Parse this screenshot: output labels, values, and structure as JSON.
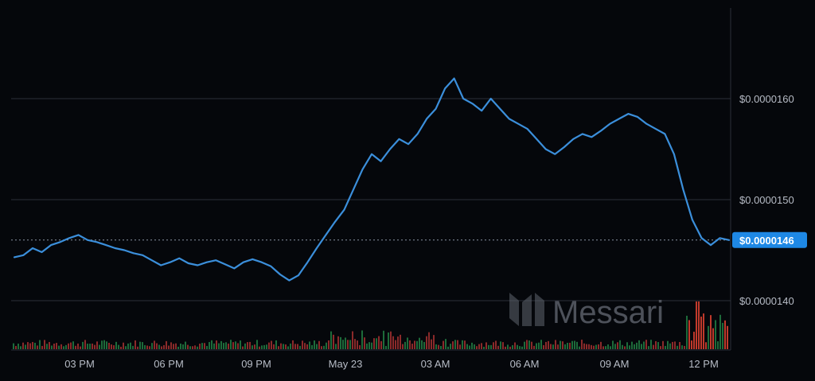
{
  "chart_data": {
    "type": "line",
    "title": "",
    "xlabel": "",
    "ylabel": "",
    "ylim": [
      1.3e-05,
      1.72e-05
    ],
    "grid": true,
    "colors": {
      "line": "#3b8fdb",
      "grid": "#2b2f38",
      "badge": "#1e88e5",
      "volume_up": "#1d6b3a",
      "volume_down": "#8b2a2a",
      "volume_spike": "#c0392b"
    },
    "x_ticks": [
      "03 PM",
      "06 PM",
      "09 PM",
      "May 23",
      "03 AM",
      "06 AM",
      "09 AM",
      "12 PM"
    ],
    "y_ticks": [
      "$0.0000140",
      "$0.0000150",
      "$0.0000160"
    ],
    "y_tick_values": [
      1.4e-05,
      1.5e-05,
      1.6e-05
    ],
    "current_price": 1.46e-05,
    "current_price_label": "$0.0000146",
    "price_points": [
      [
        0,
        1.443e-05
      ],
      [
        0.3,
        1.445e-05
      ],
      [
        0.6,
        1.452e-05
      ],
      [
        0.9,
        1.448e-05
      ],
      [
        1.2,
        1.455e-05
      ],
      [
        1.5,
        1.458e-05
      ],
      [
        1.8,
        1.462e-05
      ],
      [
        2.1,
        1.465e-05
      ],
      [
        2.4,
        1.46e-05
      ],
      [
        2.7,
        1.458e-05
      ],
      [
        3.0,
        1.455e-05
      ],
      [
        3.3,
        1.452e-05
      ],
      [
        3.6,
        1.45e-05
      ],
      [
        3.9,
        1.447e-05
      ],
      [
        4.2,
        1.445e-05
      ],
      [
        4.5,
        1.44e-05
      ],
      [
        4.8,
        1.435e-05
      ],
      [
        5.1,
        1.438e-05
      ],
      [
        5.4,
        1.442e-05
      ],
      [
        5.7,
        1.437e-05
      ],
      [
        6.0,
        1.435e-05
      ],
      [
        6.3,
        1.438e-05
      ],
      [
        6.6,
        1.44e-05
      ],
      [
        6.9,
        1.436e-05
      ],
      [
        7.2,
        1.432e-05
      ],
      [
        7.5,
        1.438e-05
      ],
      [
        7.8,
        1.441e-05
      ],
      [
        8.1,
        1.438e-05
      ],
      [
        8.4,
        1.434e-05
      ],
      [
        8.7,
        1.426e-05
      ],
      [
        9.0,
        1.42e-05
      ],
      [
        9.3,
        1.425e-05
      ],
      [
        9.6,
        1.438e-05
      ],
      [
        9.9,
        1.452e-05
      ],
      [
        10.2,
        1.465e-05
      ],
      [
        10.5,
        1.478e-05
      ],
      [
        10.8,
        1.49e-05
      ],
      [
        11.1,
        1.51e-05
      ],
      [
        11.4,
        1.53e-05
      ],
      [
        11.7,
        1.545e-05
      ],
      [
        12.0,
        1.538e-05
      ],
      [
        12.3,
        1.55e-05
      ],
      [
        12.6,
        1.56e-05
      ],
      [
        12.9,
        1.555e-05
      ],
      [
        13.2,
        1.565e-05
      ],
      [
        13.5,
        1.58e-05
      ],
      [
        13.8,
        1.59e-05
      ],
      [
        14.1,
        1.61e-05
      ],
      [
        14.4,
        1.62e-05
      ],
      [
        14.7,
        1.6e-05
      ],
      [
        15.0,
        1.595e-05
      ],
      [
        15.3,
        1.588e-05
      ],
      [
        15.6,
        1.6e-05
      ],
      [
        15.9,
        1.59e-05
      ],
      [
        16.2,
        1.58e-05
      ],
      [
        16.5,
        1.575e-05
      ],
      [
        16.8,
        1.57e-05
      ],
      [
        17.1,
        1.56e-05
      ],
      [
        17.4,
        1.55e-05
      ],
      [
        17.7,
        1.545e-05
      ],
      [
        18.0,
        1.552e-05
      ],
      [
        18.3,
        1.56e-05
      ],
      [
        18.6,
        1.565e-05
      ],
      [
        18.9,
        1.562e-05
      ],
      [
        19.2,
        1.568e-05
      ],
      [
        19.5,
        1.575e-05
      ],
      [
        19.8,
        1.58e-05
      ],
      [
        20.1,
        1.585e-05
      ],
      [
        20.4,
        1.582e-05
      ],
      [
        20.7,
        1.575e-05
      ],
      [
        21.0,
        1.57e-05
      ],
      [
        21.3,
        1.565e-05
      ],
      [
        21.6,
        1.545e-05
      ],
      [
        21.9,
        1.51e-05
      ],
      [
        22.2,
        1.48e-05
      ],
      [
        22.5,
        1.462e-05
      ],
      [
        22.8,
        1.455e-05
      ],
      [
        23.1,
        1.462e-05
      ],
      [
        23.4,
        1.46e-05
      ]
    ],
    "watermark": "Messari"
  }
}
